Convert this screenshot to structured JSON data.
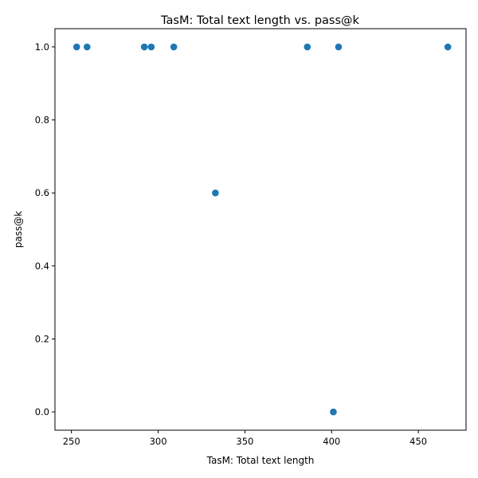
{
  "chart_data": {
    "type": "scatter",
    "title": "TasM: Total text length vs. pass@k",
    "xlabel": "TasM: Total text length",
    "ylabel": "pass@k",
    "xlim": [
      240.5,
      477.5
    ],
    "ylim": [
      -0.05,
      1.05
    ],
    "x_ticks": [
      250,
      300,
      350,
      400,
      450
    ],
    "y_ticks": [
      0.0,
      0.2,
      0.4,
      0.6,
      0.8,
      1.0
    ],
    "x_tick_labels": [
      "250",
      "300",
      "350",
      "400",
      "450"
    ],
    "y_tick_labels": [
      "0.0",
      "0.2",
      "0.4",
      "0.6",
      "0.8",
      "1.0"
    ],
    "grid": false,
    "series": [
      {
        "color": "#1f77b4",
        "points": [
          {
            "x": 253,
            "y": 1.0
          },
          {
            "x": 259,
            "y": 1.0
          },
          {
            "x": 292,
            "y": 1.0
          },
          {
            "x": 296,
            "y": 1.0
          },
          {
            "x": 309,
            "y": 1.0
          },
          {
            "x": 333,
            "y": 0.6
          },
          {
            "x": 386,
            "y": 1.0
          },
          {
            "x": 401,
            "y": 0.0
          },
          {
            "x": 404,
            "y": 1.0
          },
          {
            "x": 467,
            "y": 1.0
          }
        ]
      }
    ]
  }
}
